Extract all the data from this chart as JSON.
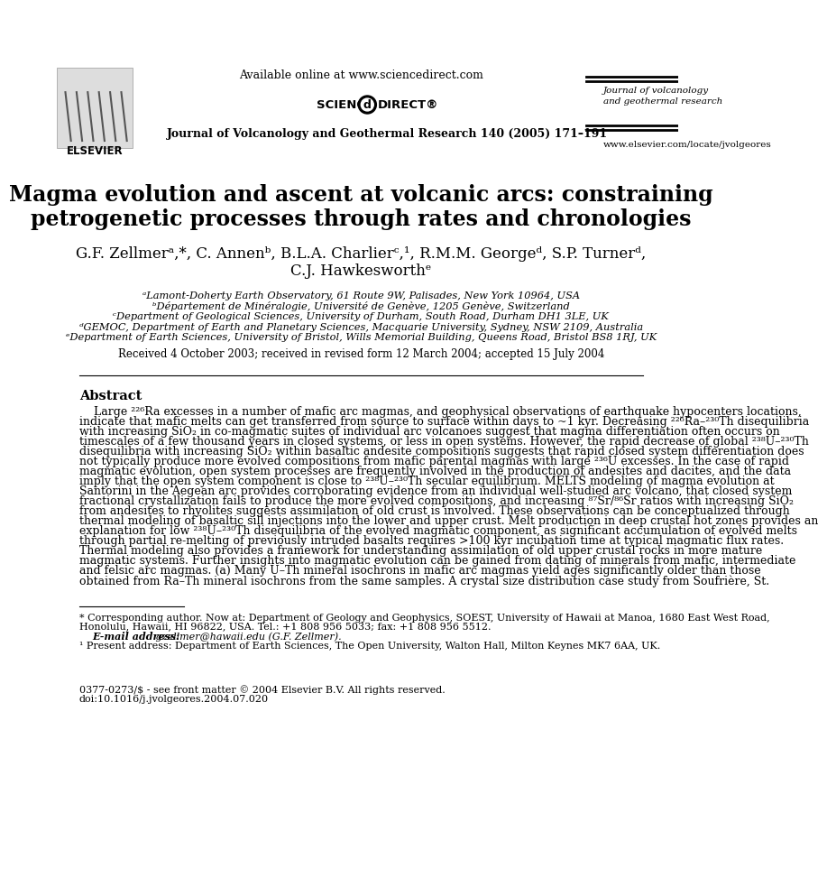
{
  "bg_color": "#ffffff",
  "available_online": "Available online at www.sciencedirect.com",
  "journal_name_top_right_line1": "Journal of volcanology",
  "journal_name_top_right_line2": "and geothermal research",
  "journal_bottom": "Journal of Volcanology and Geothermal Research 140 (2005) 171–191",
  "website": "www.elsevier.com/locate/jvolgeores",
  "title_line1": "Magma evolution and ascent at volcanic arcs: constraining",
  "title_line2": "petrogenetic processes through rates and chronologies",
  "authors": "G.F. Zellmerᵃ,*, C. Annenᵇ, B.L.A. Charlierᶜ,¹, R.M.M. Georgeᵈ, S.P. Turnerᵈ,",
  "authors_line2": "C.J. Hawkesworthᵉ",
  "affil_a": "ᵃLamont-Doherty Earth Observatory, 61 Route 9W, Palisades, New York 10964, USA",
  "affil_b": "ᵇDépartement de Minéralogie, Université de Genève, 1205 Genève, Switzerland",
  "affil_c": "ᶜDepartment of Geological Sciences, University of Durham, South Road, Durham DH1 3LE, UK",
  "affil_d": "ᵈGEMOC, Department of Earth and Planetary Sciences, Macquarie University, Sydney, NSW 2109, Australia",
  "affil_e": "ᵉDepartment of Earth Sciences, University of Bristol, Wills Memorial Building, Queens Road, Bristol BS8 1RJ, UK",
  "received": "Received 4 October 2003; received in revised form 12 March 2004; accepted 15 July 2004",
  "abstract_title": "Abstract",
  "abstract_lines": [
    "    Large ²²⁶Ra excesses in a number of mafic arc magmas, and geophysical observations of earthquake hypocenters locations,",
    "indicate that mafic melts can get transferred from source to surface within days to ~1 kyr. Decreasing ²²⁶Ra–²³⁰Th disequilibria",
    "with increasing SiO₂ in co-magmatic suites of individual arc volcanoes suggest that magma differentiation often occurs on",
    "timescales of a few thousand years in closed systems, or less in open systems. However, the rapid decrease of global ²³⁸U–²³⁰Th",
    "disequilibria with increasing SiO₂ within basaltic andesite compositions suggests that rapid closed system differentiation does",
    "not typically produce more evolved compositions from mafic parental magmas with large ²³⁶U excesses. In the case of rapid",
    "magmatic evolution, open system processes are frequently involved in the production of andesites and dacites, and the data",
    "imply that the open system component is close to ²³⁸U–²³⁰Th secular equilibrium. MELTS modeling of magma evolution at",
    "Santorini in the Aegean arc provides corroborating evidence from an individual well-studied arc volcano, that closed system",
    "fractional crystallization fails to produce the more evolved compositions, and increasing ⁸⁷Sr/⁸⁶Sr ratios with increasing SiO₂",
    "from andesites to rhyolites suggests assimilation of old crust is involved. These observations can be conceptualized through",
    "thermal modeling of basaltic sill injections into the lower and upper crust. Melt production in deep crustal hot zones provides an",
    "explanation for low ²³⁸U–²³⁰Th disequilibria of the evolved magmatic component, as significant accumulation of evolved melts",
    "through partial re-melting of previously intruded basalts requires >100 kyr incubation time at typical magmatic flux rates.",
    "Thermal modeling also provides a framework for understanding assimilation of old upper crustal rocks in more mature",
    "magmatic systems. Further insights into magmatic evolution can be gained from dating of minerals from mafic, intermediate",
    "and felsic arc magmas. (a) Many U–Th mineral isochrons in mafic arc magmas yield ages significantly older than those",
    "obtained from Ra–Th mineral isochrons from the same samples. A crystal size distribution case study from Soufrière, St."
  ],
  "footnote_star": "* Corresponding author. Now at: Department of Geology and Geophysics, SOEST, University of Hawaii at Manoa, 1680 East West Road,",
  "footnote_star2": "Honolulu, Hawaii, HI 96822, USA. Tel.: +1 808 956 5033; fax: +1 808 956 5512.",
  "footnote_email_label": "E-mail address:",
  "footnote_email": " gzellmer@hawaii.edu (G.F. Zellmer).",
  "footnote_1": "¹ Present address: Department of Earth Sciences, The Open University, Walton Hall, Milton Keynes MK7 6AA, UK.",
  "copyright_line1": "0377-0273/$ - see front matter © 2004 Elsevier B.V. All rights reserved.",
  "copyright_line2": "doi:10.1016/j.jvolgeores.2004.07.020"
}
